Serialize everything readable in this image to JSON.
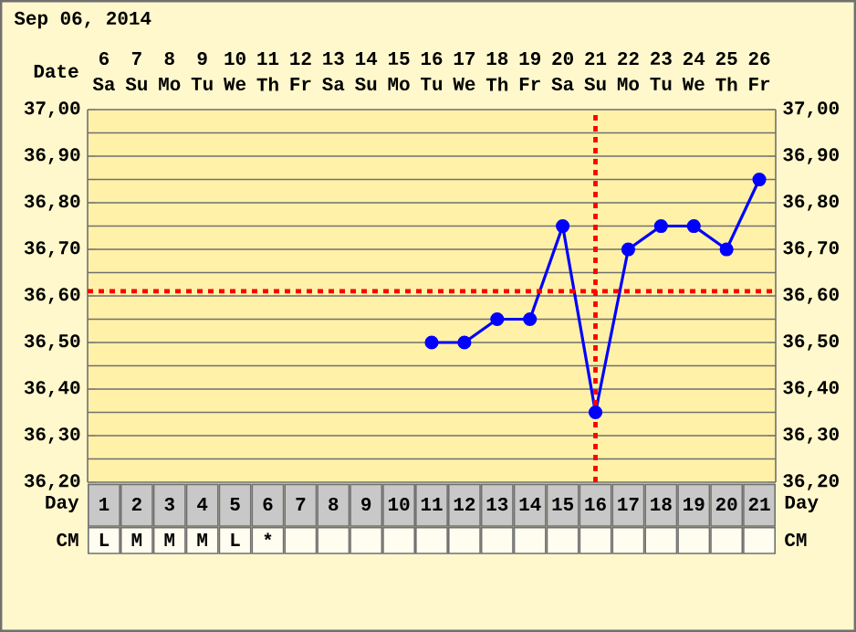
{
  "chart_data": {
    "type": "line",
    "title": "Sep 06, 2014",
    "xlabel": "Day",
    "categories": [
      "1",
      "2",
      "3",
      "4",
      "5",
      "6",
      "7",
      "8",
      "9",
      "10",
      "11",
      "12",
      "13",
      "14",
      "15",
      "16",
      "17",
      "18",
      "19",
      "20",
      "21"
    ],
    "series": [
      {
        "color": "#0000ff",
        "values": [
          null,
          null,
          null,
          null,
          null,
          null,
          null,
          null,
          null,
          null,
          36.5,
          36.5,
          36.55,
          36.55,
          36.75,
          36.35,
          36.7,
          36.75,
          36.75,
          36.7,
          36.85
        ]
      }
    ],
    "ylim": [
      36.2,
      37.0
    ],
    "yticks": [
      {
        "value": 36.2,
        "label": "36,20"
      },
      {
        "value": 36.3,
        "label": "36,30"
      },
      {
        "value": 36.4,
        "label": "36,40"
      },
      {
        "value": 36.5,
        "label": "36,50"
      },
      {
        "value": 36.6,
        "label": "36,60"
      },
      {
        "value": 36.7,
        "label": "36,70"
      },
      {
        "value": 36.8,
        "label": "36,80"
      },
      {
        "value": 36.9,
        "label": "36,90"
      },
      {
        "value": 37.0,
        "label": "37,00"
      }
    ],
    "y2lim": [
      36.2,
      37.0
    ],
    "y2ticks": [
      {
        "value": 36.2,
        "label": "36,20"
      },
      {
        "value": 36.3,
        "label": "36,30"
      },
      {
        "value": 36.4,
        "label": "36,40"
      },
      {
        "value": 36.5,
        "label": "36,50"
      },
      {
        "value": 36.6,
        "label": "36,60"
      },
      {
        "value": 36.7,
        "label": "36,70"
      },
      {
        "value": 36.8,
        "label": "36,80"
      },
      {
        "value": 36.9,
        "label": "36,90"
      },
      {
        "value": 37.0,
        "label": "37,00"
      }
    ],
    "grid": true,
    "marker": "circle",
    "ref_lines": [
      {
        "axis": "y",
        "value": 36.61,
        "color": "#ff0000",
        "line_style": "dotted"
      },
      {
        "axis": "x",
        "value": "16",
        "color": "#ff0000",
        "line_style": "dotted"
      }
    ],
    "annotations": [
      "Date",
      "6",
      "7",
      "8",
      "9",
      "10",
      "11",
      "12",
      "13",
      "14",
      "15",
      "16",
      "17",
      "18",
      "19",
      "20",
      "21",
      "22",
      "23",
      "24",
      "25",
      "26",
      "Sa",
      "Su",
      "Mo",
      "Tu",
      "We",
      "Th",
      "Fr",
      "Sa",
      "Su",
      "Mo",
      "Tu",
      "We",
      "Th",
      "Fr",
      "Sa",
      "Su",
      "Mo",
      "Tu",
      "We",
      "Th",
      "Fr",
      "CM",
      "L",
      "M",
      "M",
      "M",
      "L",
      "*"
    ]
  }
}
